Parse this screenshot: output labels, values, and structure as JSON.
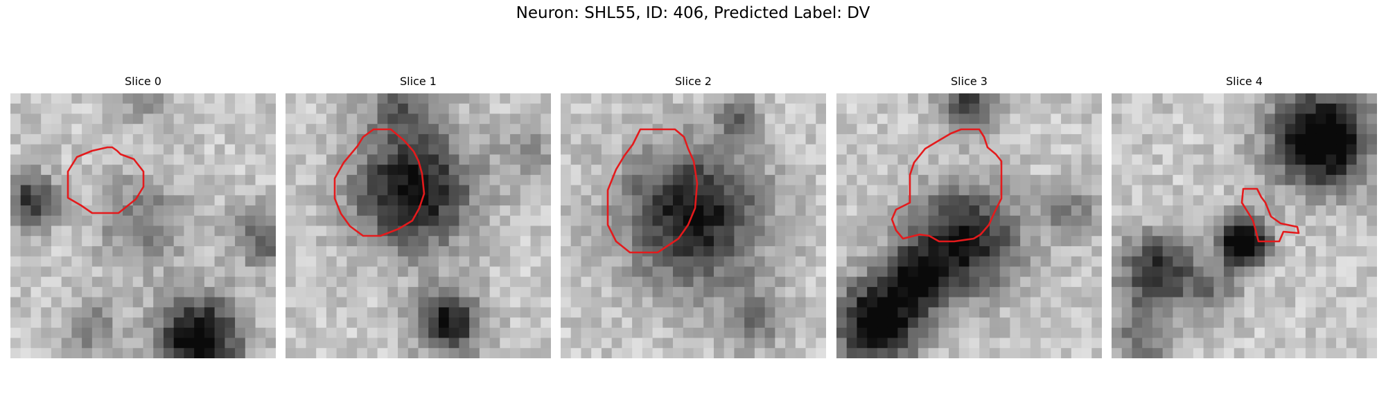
{
  "figure": {
    "title": "Neuron: SHL55, ID: 406, Predicted Label: DV"
  },
  "panels": [
    {
      "title": "Slice 0"
    },
    {
      "title": "Slice 1"
    },
    {
      "title": "Slice 2"
    },
    {
      "title": "Slice 3"
    },
    {
      "title": "Slice 4"
    }
  ],
  "colors": {
    "contour": "#e41a1c",
    "background": "#ffffff",
    "colormap": "grayscale"
  }
}
